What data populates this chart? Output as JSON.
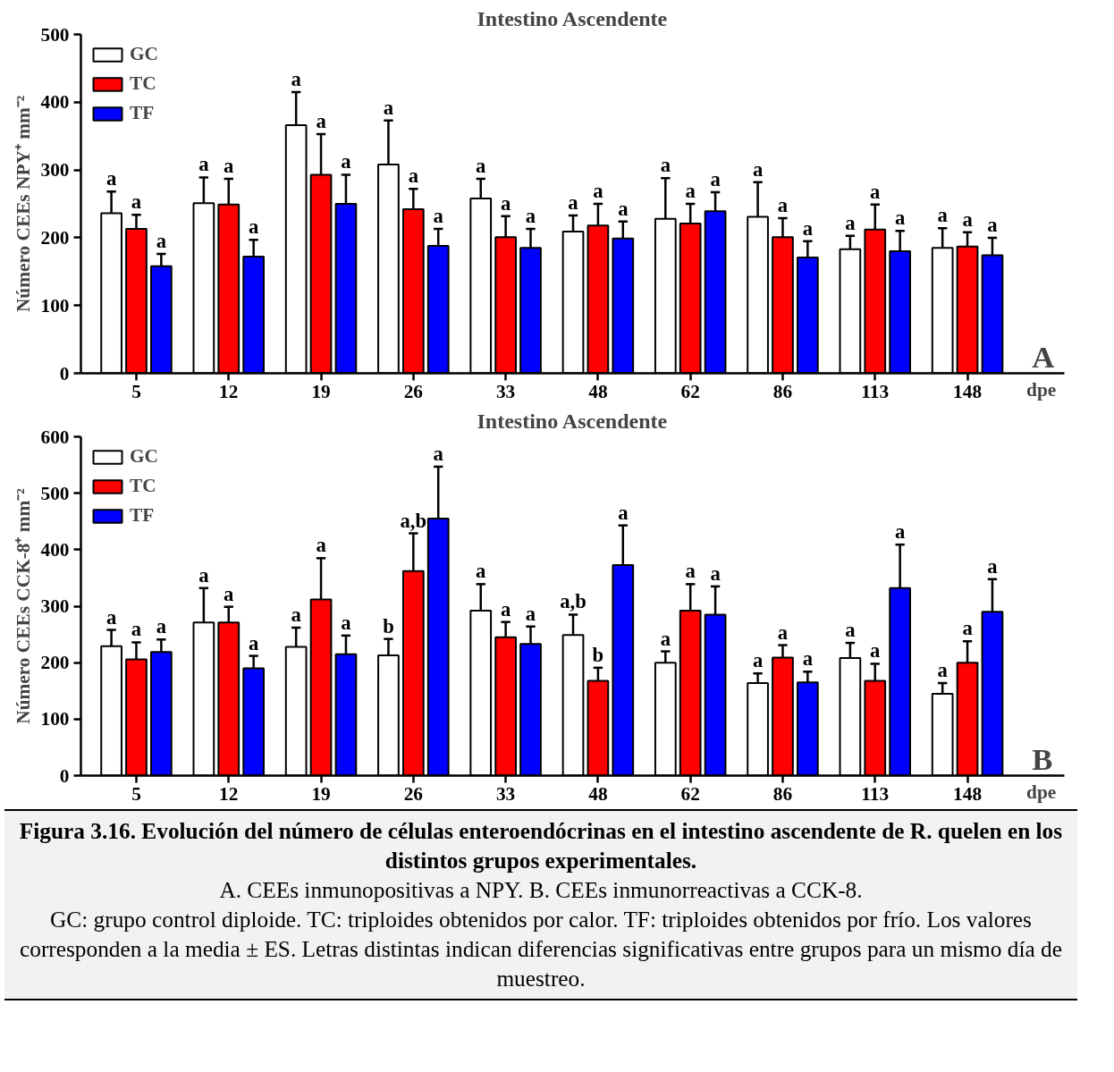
{
  "chart_data": [
    {
      "type": "bar",
      "title": "Intestino Ascendente",
      "xlabel": "dpe",
      "ylabel": "Número CEEs NPY⁺ mm⁻²",
      "categories": [
        "5",
        "12",
        "19",
        "26",
        "33",
        "48",
        "62",
        "86",
        "113",
        "148"
      ],
      "ylim": [
        0,
        500
      ],
      "yticks": [
        0,
        100,
        200,
        300,
        400,
        500
      ],
      "grid": false,
      "legend": "top left",
      "series": [
        {
          "name": "GC",
          "color": "#ffffff",
          "values": [
            236,
            251,
            366,
            308,
            258,
            209,
            228,
            231,
            183,
            185
          ],
          "errors": [
            [
              236,
              268
            ],
            [
              251,
              289
            ],
            [
              366,
              415
            ],
            [
              308,
              373
            ],
            [
              258,
              287
            ],
            [
              209,
              233
            ],
            [
              228,
              288
            ],
            [
              231,
              282
            ],
            [
              183,
              203
            ],
            [
              185,
              214
            ]
          ],
          "value_labels": [
            "a",
            "a",
            "a",
            "a",
            "a",
            "a",
            "a",
            "a",
            "a",
            "a"
          ]
        },
        {
          "name": "TC",
          "color": "#ff0000",
          "values": [
            213,
            249,
            293,
            242,
            201,
            218,
            221,
            201,
            212,
            187
          ],
          "errors": [
            [
              213,
              234
            ],
            [
              249,
              287
            ],
            [
              293,
              353
            ],
            [
              242,
              272
            ],
            [
              201,
              232
            ],
            [
              218,
              250
            ],
            [
              221,
              250
            ],
            [
              201,
              229
            ],
            [
              212,
              249
            ],
            [
              187,
              208
            ]
          ],
          "value_labels": [
            "a",
            "a",
            "a",
            "a",
            "a",
            "a",
            "a",
            "a",
            "a",
            "a"
          ]
        },
        {
          "name": "TF",
          "color": "#0000ff",
          "values": [
            158,
            172,
            250,
            188,
            185,
            199,
            239,
            171,
            180,
            174
          ],
          "errors": [
            [
              158,
              176
            ],
            [
              172,
              197
            ],
            [
              250,
              293
            ],
            [
              188,
              213
            ],
            [
              185,
              213
            ],
            [
              199,
              224
            ],
            [
              239,
              267
            ],
            [
              171,
              195
            ],
            [
              180,
              210
            ],
            [
              174,
              200
            ]
          ],
          "value_labels": [
            "a",
            "a",
            "a",
            "a",
            "a",
            "a",
            "a",
            "a",
            "a",
            "a"
          ]
        }
      ],
      "annotations": [
        "A"
      ]
    },
    {
      "type": "bar",
      "title": "Intestino Ascendente",
      "xlabel": "dpe",
      "ylabel": "Número CEEs CCK-8⁺ mm⁻²",
      "categories": [
        "5",
        "12",
        "19",
        "26",
        "33",
        "48",
        "62",
        "86",
        "113",
        "148"
      ],
      "ylim": [
        0,
        600
      ],
      "yticks": [
        0,
        100,
        200,
        300,
        400,
        500,
        600
      ],
      "grid": false,
      "legend": "top left",
      "series": [
        {
          "name": "GC",
          "color": "#ffffff",
          "values": [
            229,
            271,
            228,
            213,
            292,
            249,
            200,
            164,
            208,
            145
          ],
          "errors": [
            [
              229,
              258
            ],
            [
              271,
              332
            ],
            [
              228,
              262
            ],
            [
              213,
              242
            ],
            [
              292,
              339
            ],
            [
              249,
              285
            ],
            [
              200,
              220
            ],
            [
              164,
              181
            ],
            [
              208,
              235
            ],
            [
              145,
              164
            ]
          ],
          "value_labels": [
            "a",
            "a",
            "a",
            "b",
            "a",
            "a,b",
            "a",
            "a",
            "a",
            "a"
          ]
        },
        {
          "name": "TC",
          "color": "#ff0000",
          "values": [
            206,
            271,
            312,
            362,
            245,
            168,
            292,
            209,
            168,
            200
          ],
          "errors": [
            [
              206,
              236
            ],
            [
              271,
              299
            ],
            [
              312,
              385
            ],
            [
              362,
              429
            ],
            [
              245,
              272
            ],
            [
              168,
              191
            ],
            [
              292,
              339
            ],
            [
              209,
              231
            ],
            [
              168,
              198
            ],
            [
              200,
              238
            ]
          ],
          "value_labels": [
            "a",
            "a",
            "a",
            "a,b",
            "a",
            "b",
            "a",
            "a",
            "a",
            "a"
          ]
        },
        {
          "name": "TF",
          "color": "#0000ff",
          "values": [
            219,
            190,
            215,
            455,
            233,
            373,
            285,
            165,
            332,
            290
          ],
          "errors": [
            [
              219,
              241
            ],
            [
              190,
              212
            ],
            [
              215,
              248
            ],
            [
              455,
              547
            ],
            [
              233,
              264
            ],
            [
              373,
              443
            ],
            [
              285,
              335
            ],
            [
              165,
              184
            ],
            [
              332,
              409
            ],
            [
              290,
              348
            ]
          ],
          "value_labels": [
            "a",
            "a",
            "a",
            "a",
            "a",
            "a",
            "a",
            "a",
            "a",
            "a"
          ]
        }
      ],
      "annotations": [
        "B",
        "Figura 3.16. Evolución del número de células enteroendócrinas en el intestino ascendente de R. quelen en los distintos grupos experimentales.",
        "A. CEEs inmunopositivas a NPY. B. CEEs inmunorreactivas a CCK-8.",
        "GC: grupo control diploide. TC: triploides obtenidos por calor. TF: triploides obtenidos por frío. Los valores corresponden a la media ± ES. Letras distintas indican diferencias significativas entre grupos para un mismo día de muestreo."
      ]
    }
  ]
}
